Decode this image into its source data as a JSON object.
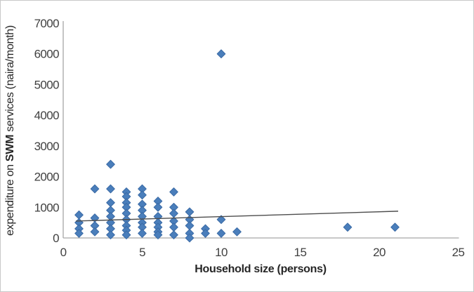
{
  "chart_data": {
    "type": "scatter",
    "xlabel": "Household size (persons)",
    "ylabel_pre": "expenditure on ",
    "ylabel_bold": "SWM",
    "ylabel_post": " services (naira/month)",
    "xlim": [
      0,
      25
    ],
    "ylim": [
      0,
      7000
    ],
    "xticks": [
      "0",
      "5",
      "10",
      "15",
      "20",
      "25"
    ],
    "yticks": [
      "0",
      "1000",
      "2000",
      "3000",
      "4000",
      "5000",
      "6000",
      "7000"
    ],
    "grid": false,
    "legend": "none",
    "marker": {
      "shape": "diamond",
      "fill": "#4a7ebb",
      "stroke": "#3a6aa5"
    },
    "axis_color": "#a6a6a6",
    "points": [
      [
        1,
        750
      ],
      [
        1,
        500
      ],
      [
        1,
        300
      ],
      [
        1,
        150
      ],
      [
        2,
        1600
      ],
      [
        2,
        650
      ],
      [
        2,
        400
      ],
      [
        2,
        200
      ],
      [
        3,
        2400
      ],
      [
        3,
        1600
      ],
      [
        3,
        1150
      ],
      [
        3,
        900
      ],
      [
        3,
        700
      ],
      [
        3,
        500
      ],
      [
        3,
        300
      ],
      [
        3,
        100
      ],
      [
        4,
        1500
      ],
      [
        4,
        1350
      ],
      [
        4,
        1150
      ],
      [
        4,
        1000
      ],
      [
        4,
        800
      ],
      [
        4,
        600
      ],
      [
        4,
        400
      ],
      [
        4,
        250
      ],
      [
        4,
        100
      ],
      [
        5,
        1600
      ],
      [
        5,
        1400
      ],
      [
        5,
        1100
      ],
      [
        5,
        900
      ],
      [
        5,
        700
      ],
      [
        5,
        500
      ],
      [
        5,
        350
      ],
      [
        5,
        150
      ],
      [
        6,
        1200
      ],
      [
        6,
        1000
      ],
      [
        6,
        700
      ],
      [
        6,
        500
      ],
      [
        6,
        350
      ],
      [
        6,
        200
      ],
      [
        6,
        100
      ],
      [
        7,
        1500
      ],
      [
        7,
        1000
      ],
      [
        7,
        800
      ],
      [
        7,
        550
      ],
      [
        7,
        350
      ],
      [
        7,
        100
      ],
      [
        8,
        850
      ],
      [
        8,
        600
      ],
      [
        8,
        400
      ],
      [
        8,
        150
      ],
      [
        8,
        0
      ],
      [
        9,
        300
      ],
      [
        9,
        150
      ],
      [
        10,
        6000
      ],
      [
        10,
        600
      ],
      [
        10,
        150
      ],
      [
        11,
        200
      ],
      [
        18,
        350
      ],
      [
        21,
        350
      ]
    ],
    "trendline": {
      "x1": 0.8,
      "y1": 550,
      "x2": 21.2,
      "y2": 872,
      "color": "#4d4d4d"
    }
  }
}
